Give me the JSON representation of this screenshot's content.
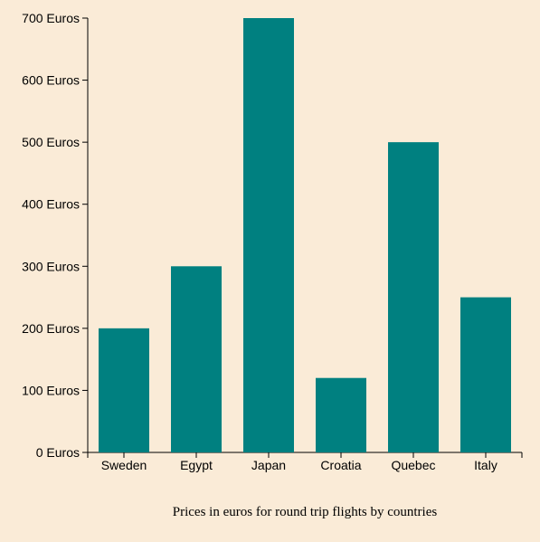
{
  "chart_data": {
    "type": "bar",
    "categories": [
      "Sweden",
      "Egypt",
      "Japan",
      "Croatia",
      "Quebec",
      "Italy"
    ],
    "values": [
      200,
      300,
      700,
      120,
      500,
      250
    ],
    "ylim": [
      0,
      700
    ],
    "yticks": [
      0,
      100,
      200,
      300,
      400,
      500,
      600,
      700
    ],
    "ytick_labels": [
      "0 Euros",
      "100 Euros",
      "200 Euros",
      "300 Euros",
      "400 Euros",
      "500 Euros",
      "600 Euros",
      "700 Euros"
    ],
    "title": "",
    "xlabel": "Prices in euros for round trip flights by countries",
    "ylabel": "",
    "grid": false,
    "bar_color": "#008080",
    "background_color": "#faebd7"
  }
}
